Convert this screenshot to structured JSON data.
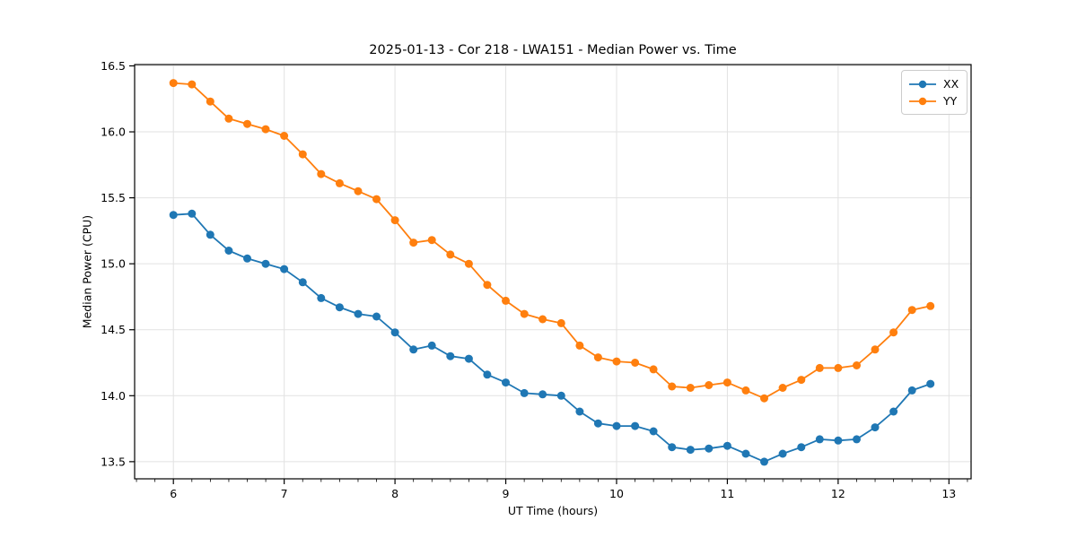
{
  "chart_data": {
    "type": "line",
    "title": "2025-01-13 - Cor 218 - LWA151 - Median Power vs. Time",
    "xlabel": "UT Time (hours)",
    "ylabel": "Median Power (CPU)",
    "x": [
      6.0,
      6.167,
      6.333,
      6.5,
      6.667,
      6.833,
      7.0,
      7.167,
      7.333,
      7.5,
      7.667,
      7.833,
      8.0,
      8.167,
      8.333,
      8.5,
      8.667,
      8.833,
      9.0,
      9.167,
      9.333,
      9.5,
      9.667,
      9.833,
      10.0,
      10.167,
      10.333,
      10.5,
      10.667,
      10.833,
      11.0,
      11.167,
      11.333,
      11.5,
      11.667,
      11.833,
      12.0,
      12.167,
      12.333,
      12.5,
      12.667,
      12.833
    ],
    "series": [
      {
        "name": "XX",
        "color": "#1f77b4",
        "values": [
          15.37,
          15.38,
          15.22,
          15.1,
          15.04,
          15.0,
          14.96,
          14.86,
          14.74,
          14.67,
          14.62,
          14.6,
          14.48,
          14.35,
          14.38,
          14.3,
          14.28,
          14.16,
          14.1,
          14.02,
          14.01,
          14.0,
          13.88,
          13.79,
          13.77,
          13.77,
          13.73,
          13.61,
          13.59,
          13.6,
          13.62,
          13.56,
          13.5,
          13.56,
          13.61,
          13.67,
          13.66,
          13.67,
          13.76,
          13.88,
          14.04,
          14.09
        ]
      },
      {
        "name": "YY",
        "color": "#ff7f0e",
        "values": [
          16.37,
          16.36,
          16.23,
          16.1,
          16.06,
          16.02,
          15.97,
          15.83,
          15.68,
          15.61,
          15.55,
          15.49,
          15.33,
          15.16,
          15.18,
          15.07,
          15.0,
          14.84,
          14.72,
          14.62,
          14.58,
          14.55,
          14.38,
          14.29,
          14.26,
          14.25,
          14.2,
          14.07,
          14.06,
          14.08,
          14.1,
          14.04,
          13.98,
          14.06,
          14.12,
          14.21,
          14.21,
          14.23,
          14.35,
          14.48,
          14.65,
          14.68
        ]
      }
    ],
    "xlim": [
      5.65,
      13.2
    ],
    "ylim": [
      13.37,
      16.51
    ],
    "xticks": [
      6,
      7,
      8,
      9,
      10,
      11,
      12,
      13
    ],
    "xtick_labels": [
      "6",
      "7",
      "8",
      "9",
      "10",
      "11",
      "12",
      "13"
    ],
    "x_minor_tick_step": 0.16667,
    "yticks": [
      13.5,
      14.0,
      14.5,
      15.0,
      15.5,
      16.0,
      16.5
    ],
    "ytick_labels": [
      "13.5",
      "14.0",
      "14.5",
      "15.0",
      "15.5",
      "16.0",
      "16.5"
    ],
    "grid": true,
    "grid_color": "#e2e2e2",
    "spine_color": "#000000",
    "legend_position": "upper right",
    "marker": "o"
  }
}
